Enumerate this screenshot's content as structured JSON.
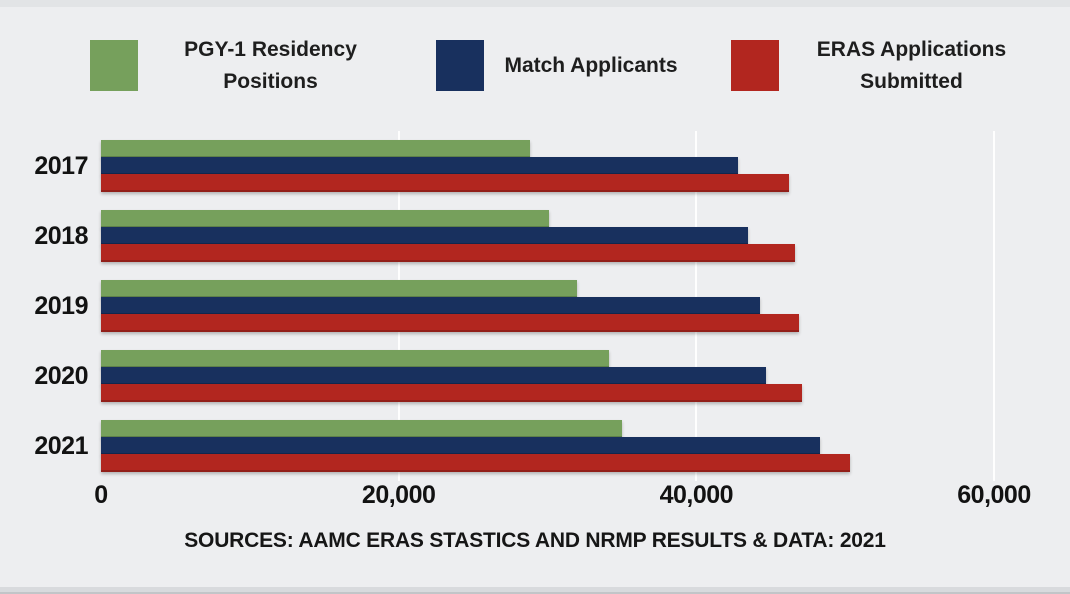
{
  "page": {
    "background": "#edeef0",
    "source_note": "SOURCES: AAMC ERAS STASTICS AND NRMP RESULTS & DATA: 2021"
  },
  "legend": {
    "items": [
      {
        "label": "PGY-1 Residency Positions",
        "color": "#76a05c"
      },
      {
        "label": "Match Applicants",
        "color": "#18305e"
      },
      {
        "label": "ERAS Applications Submitted",
        "color": "#b2261f"
      }
    ]
  },
  "chart_data": {
    "type": "bar",
    "orientation": "horizontal",
    "title": "",
    "xlabel": "",
    "ylabel": "",
    "categories": [
      "2017",
      "2018",
      "2019",
      "2020",
      "2021"
    ],
    "series": [
      {
        "name": "PGY-1 Residency Positions",
        "color": "#76a05c",
        "values": [
          28800,
          30100,
          32000,
          34100,
          35000
        ]
      },
      {
        "name": "Match Applicants",
        "color": "#18305e",
        "values": [
          42800,
          43500,
          44300,
          44700,
          48300
        ]
      },
      {
        "name": "ERAS Applications Submitted",
        "color": "#b2261f",
        "values": [
          46200,
          46600,
          46900,
          47100,
          50300
        ]
      }
    ],
    "xlim": [
      0,
      60000
    ],
    "x_ticks": [
      0,
      20000,
      40000,
      60000
    ],
    "x_tick_labels": [
      "0",
      "20,000",
      "40,000",
      "60,000"
    ],
    "grid": "vertical-light-on-gray",
    "legend_position": "top",
    "background": "#edeef0"
  }
}
